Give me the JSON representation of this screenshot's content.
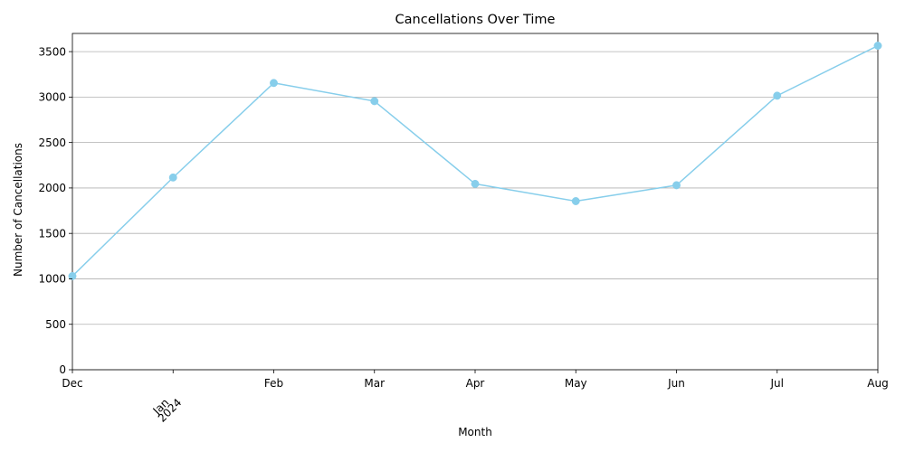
{
  "chart_data": {
    "type": "line",
    "title": "Cancellations Over Time",
    "xlabel": "Month",
    "ylabel": "Number of Cancellations",
    "x": [
      "Dec",
      "Jan",
      "Feb",
      "Mar",
      "Apr",
      "May",
      "Jun",
      "Jul",
      "Aug"
    ],
    "x_year_label": "2024",
    "series": [
      {
        "values": [
          1030,
          2115,
          3155,
          2955,
          2045,
          1855,
          2030,
          3015,
          3565
        ],
        "color": "#87ceeb",
        "marker": "circle"
      }
    ],
    "ylim": [
      0,
      3700
    ],
    "yticks": [
      0,
      500,
      1000,
      1500,
      2000,
      2500,
      3000,
      3500
    ],
    "grid": "horizontal",
    "legend": "none"
  }
}
